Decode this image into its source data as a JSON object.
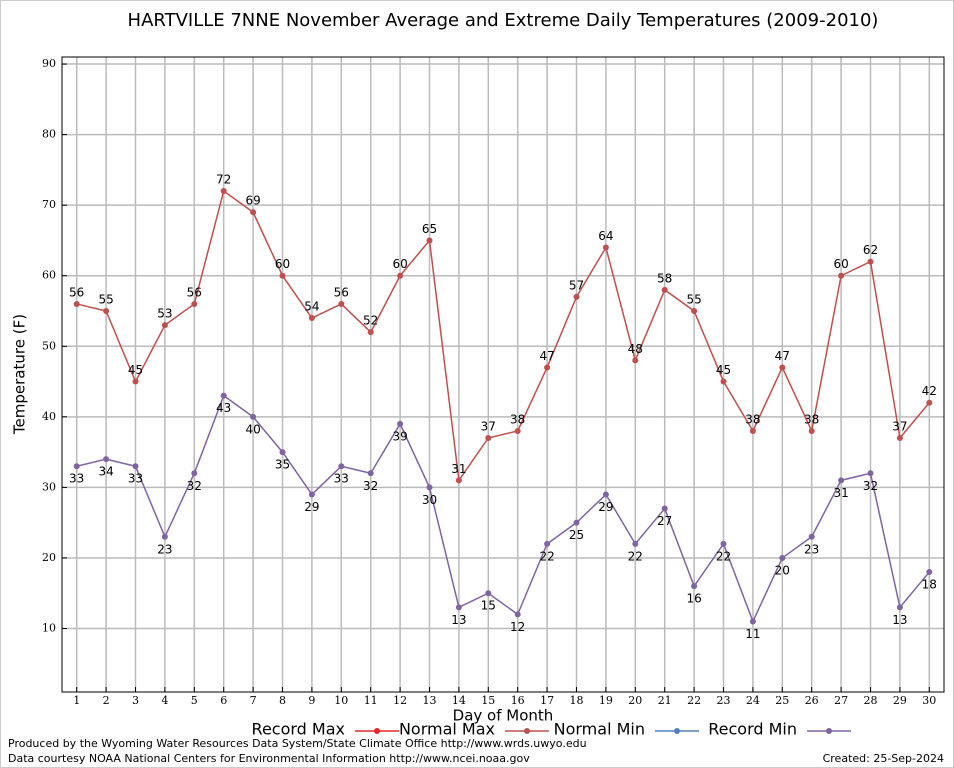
{
  "chart_data": {
    "type": "line",
    "title": "HARTVILLE 7NNE November Average and Extreme Daily Temperatures (2009-2010)",
    "x_label": "Day of Month",
    "y_label": "Temperature (F)",
    "x": [
      1,
      2,
      3,
      4,
      5,
      6,
      7,
      8,
      9,
      10,
      11,
      12,
      13,
      14,
      15,
      16,
      17,
      18,
      19,
      20,
      21,
      22,
      23,
      24,
      25,
      26,
      27,
      28,
      29,
      30
    ],
    "xlim": [
      0.5,
      30.5
    ],
    "xticks": [
      1,
      2,
      3,
      4,
      5,
      6,
      7,
      8,
      9,
      10,
      11,
      12,
      13,
      14,
      15,
      16,
      17,
      18,
      19,
      20,
      21,
      22,
      23,
      24,
      25,
      26,
      27,
      28,
      29,
      30
    ],
    "ylim": [
      1,
      91
    ],
    "yticks": [
      10,
      20,
      30,
      40,
      50,
      60,
      70,
      80,
      90
    ],
    "grid": true,
    "series": [
      {
        "name": "Record Max",
        "color": "#e8262a",
        "values": [
          null,
          null,
          null,
          null,
          null,
          null,
          null,
          null,
          null,
          null,
          null,
          null,
          null,
          null,
          null,
          null,
          null,
          null,
          null,
          null,
          null,
          null,
          null,
          null,
          null,
          null,
          null,
          null,
          null,
          null
        ]
      },
      {
        "name": "Normal Max",
        "color": "#c0504d",
        "values": [
          56,
          55,
          45,
          53,
          56,
          72,
          69,
          60,
          54,
          56,
          52,
          60,
          65,
          31,
          37,
          38,
          47,
          57,
          64,
          48,
          58,
          55,
          45,
          38,
          47,
          38,
          60,
          62,
          37,
          42
        ],
        "label_side": "above"
      },
      {
        "name": "Normal Min",
        "color": "#4f81bd",
        "values": [
          null,
          null,
          null,
          null,
          null,
          null,
          null,
          null,
          null,
          null,
          null,
          null,
          null,
          null,
          null,
          null,
          null,
          null,
          null,
          null,
          null,
          null,
          null,
          null,
          null,
          null,
          null,
          null,
          null,
          null
        ]
      },
      {
        "name": "Record Min",
        "color": "#8064a2",
        "values": [
          33,
          34,
          33,
          23,
          32,
          43,
          40,
          35,
          29,
          33,
          32,
          39,
          30,
          13,
          15,
          12,
          22,
          25,
          29,
          22,
          27,
          16,
          22,
          11,
          20,
          23,
          31,
          32,
          13,
          18
        ],
        "label_side": "below"
      }
    ],
    "footer_left": [
      "Produced by the Wyoming Water Resources Data System/State Climate Office http://www.wrds.uwyo.edu",
      "Data courtesy NOAA National Centers for Environmental Information http://www.ncei.noaa.gov"
    ],
    "footer_right": "Created:  25-Sep-2024"
  }
}
